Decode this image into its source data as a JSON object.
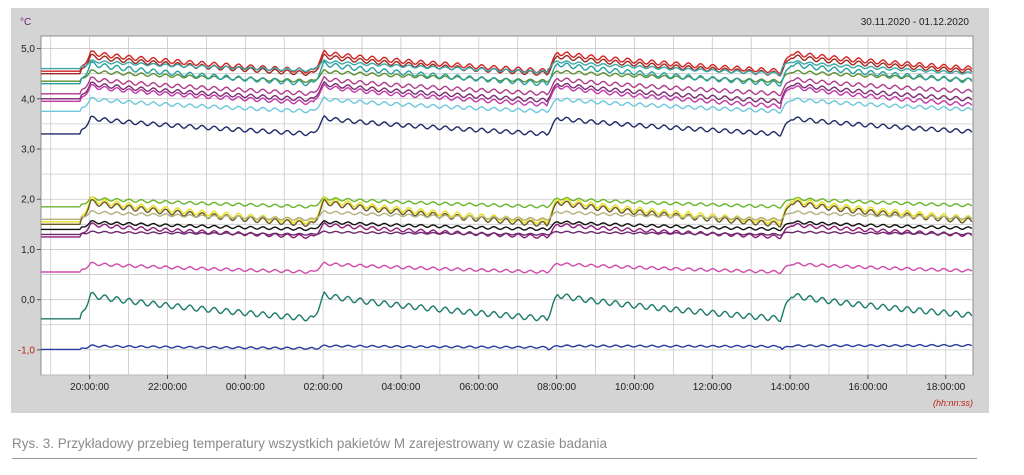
{
  "chart_data": {
    "type": "line",
    "ylabel": "°C",
    "date_range": "30.11.2020 - 01.12.2020",
    "x_unit": "(hh:nn:ss)",
    "x_ticks": [
      "20:00:00",
      "22:00:00",
      "00:00:00",
      "02:00:00",
      "04:00:00",
      "06:00:00",
      "08:00:00",
      "10:00:00",
      "12:00:00",
      "14:00:00",
      "16:00:00",
      "18:00:00"
    ],
    "y_ticks": [
      "5,0",
      "4,0",
      "3,0",
      "2,0",
      "1,0",
      "0,0",
      "-1,0"
    ],
    "y_tick_values": [
      5,
      4,
      3,
      2,
      1,
      0,
      -1
    ],
    "ylim": [
      -1.5,
      5.25
    ],
    "xlim_hours": [
      18.75,
      42.7
    ],
    "grid": true,
    "cycle_start_hours": [
      19.75,
      25.75,
      31.75,
      37.75
    ],
    "series": [
      {
        "color": "#d42222",
        "start": 4.55,
        "peak": 4.92,
        "end": 4.55
      },
      {
        "color": "#9e2a20",
        "start": 4.5,
        "peak": 4.85,
        "end": 4.5
      },
      {
        "color": "#3aa8a8",
        "start": 4.6,
        "peak": 4.75,
        "end": 4.5
      },
      {
        "color": "#5e8f33",
        "start": 4.35,
        "peak": 4.55,
        "end": 4.35
      },
      {
        "color": "#28a0a0",
        "start": 4.3,
        "peak": 4.7,
        "end": 4.3
      },
      {
        "color": "#b03a8a",
        "start": 4.1,
        "peak": 4.4,
        "end": 4.1
      },
      {
        "color": "#7a2c73",
        "start": 4.0,
        "peak": 4.3,
        "end": 3.95
      },
      {
        "color": "#c238a8",
        "start": 3.95,
        "peak": 4.25,
        "end": 3.85
      },
      {
        "color": "#6dc8dc",
        "start": 3.75,
        "peak": 4.0,
        "end": 3.75
      },
      {
        "color": "#1f2b66",
        "start": 3.3,
        "peak": 3.62,
        "end": 3.3
      },
      {
        "color": "#6ab52e",
        "start": 1.85,
        "peak": 2.02,
        "end": 1.85
      },
      {
        "color": "#e8e020",
        "start": 1.55,
        "peak": 2.0,
        "end": 1.55
      },
      {
        "color": "#6a5a20",
        "start": 1.5,
        "peak": 1.95,
        "end": 1.5
      },
      {
        "color": "#b4b080",
        "start": 1.6,
        "peak": 1.75,
        "end": 1.6
      },
      {
        "color": "#111111",
        "start": 1.4,
        "peak": 1.55,
        "end": 1.4
      },
      {
        "color": "#8a1d79",
        "start": 1.25,
        "peak": 1.5,
        "end": 1.25
      },
      {
        "color": "#6e2a6e",
        "start": 1.3,
        "peak": 1.35,
        "end": 1.3
      },
      {
        "color": "#cf4aa9",
        "start": 0.55,
        "peak": 0.72,
        "end": 0.55
      },
      {
        "color": "#1a7a6a",
        "start": -0.38,
        "peak": 0.1,
        "end": -0.38
      },
      {
        "color": "#2a3aa0",
        "start": -0.99,
        "peak": -0.92,
        "end": -0.93
      }
    ]
  },
  "caption": "Rys. 3. Przykładowy przebieg temperatury wszystkich pakietów M zarejestrowany w czasie badania"
}
